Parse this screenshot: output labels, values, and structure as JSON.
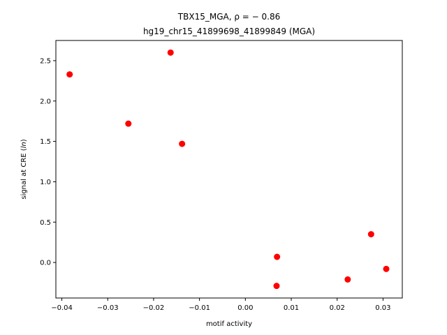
{
  "chart_data": {
    "type": "scatter",
    "title_line1": "TBX15_MGA, ρ = − 0.86",
    "title_line2": "hg19_chr15_41899698_41899849 (MGA)",
    "xlabel": "motif activity",
    "ylabel_prefix": "signal at CRE (",
    "ylabel_italic": "ln",
    "ylabel_suffix": ")",
    "xlim": [
      -0.0413,
      0.0342
    ],
    "ylim": [
      -0.44,
      2.75
    ],
    "xticks": [
      -0.04,
      -0.03,
      -0.02,
      -0.01,
      0.0,
      0.01,
      0.02,
      0.03
    ],
    "xtick_labels": [
      "−0.04",
      "−0.03",
      "−0.02",
      "−0.01",
      "0.00",
      "0.01",
      "0.02",
      "0.03"
    ],
    "yticks": [
      0.0,
      0.5,
      1.0,
      1.5,
      2.0,
      2.5
    ],
    "ytick_labels": [
      "0.0",
      "0.5",
      "1.0",
      "1.5",
      "2.0",
      "2.5"
    ],
    "grid": false,
    "marker_color": "#ff0000",
    "points": [
      {
        "x": -0.0383,
        "y": 2.33
      },
      {
        "x": -0.0255,
        "y": 1.72
      },
      {
        "x": -0.0163,
        "y": 2.6
      },
      {
        "x": -0.0138,
        "y": 1.47
      },
      {
        "x": 0.0069,
        "y": 0.07
      },
      {
        "x": 0.0068,
        "y": -0.29
      },
      {
        "x": 0.0223,
        "y": -0.21
      },
      {
        "x": 0.0274,
        "y": 0.35
      },
      {
        "x": 0.0307,
        "y": -0.08
      }
    ]
  }
}
